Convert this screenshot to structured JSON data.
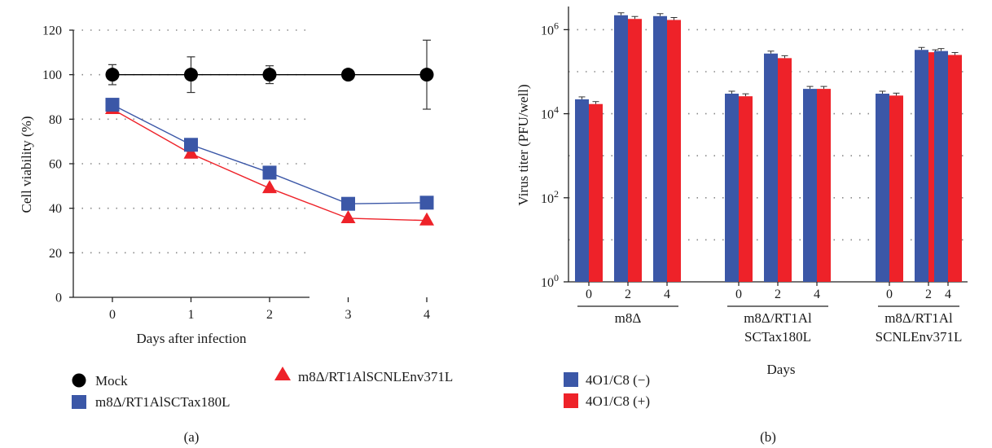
{
  "chart_data": [
    {
      "type": "line",
      "panel_label": "(a)",
      "xlabel": "Days after infection",
      "ylabel": "Cell viability (%)",
      "x": [
        0,
        1,
        2,
        3,
        4
      ],
      "x_tick_labels": [
        "0",
        "1",
        "2",
        "3",
        "4"
      ],
      "ylim": [
        0,
        120
      ],
      "y_ticks": [
        0,
        20,
        40,
        60,
        80,
        100,
        120
      ],
      "y_tick_labels": [
        "0",
        "20",
        "40",
        "60",
        "80",
        "100",
        "120"
      ],
      "grid": "horizontal dotted",
      "legend": [
        "Mock",
        "m8Δ/RT1AlSCTax180L",
        "m8Δ/RT1AlSCNLEnv371L"
      ],
      "series": [
        {
          "name": "Mock",
          "marker": "circle",
          "color": "#000000",
          "values": [
            100,
            100,
            100,
            100,
            100
          ],
          "errors": [
            4.5,
            8,
            4,
            0.8,
            15.5
          ]
        },
        {
          "name": "m8Δ/RT1AlSCTax180L",
          "marker": "square",
          "color": "#3b57a7",
          "values": [
            86.5,
            68.5,
            56,
            42,
            42.5
          ],
          "errors": [
            2,
            2.5,
            2.5,
            2.5,
            2.2
          ]
        },
        {
          "name": "m8Δ/RT1AlSCNLEnv371L",
          "marker": "triangle",
          "color": "#ee2229",
          "values": [
            84.5,
            64.5,
            49,
            35.5,
            34.5
          ],
          "errors": [
            1,
            1,
            1,
            1,
            1
          ]
        }
      ]
    },
    {
      "type": "bar",
      "panel_label": "(b)",
      "xlabel": "Days",
      "ylabel": "Virus titer (PFU/well)",
      "y_scale": "log",
      "ylim": [
        1,
        10000000
      ],
      "y_ticks": [
        1,
        100,
        10000,
        1000000
      ],
      "y_tick_labels": [
        [
          "10",
          "0"
        ],
        [
          "10",
          "2"
        ],
        [
          "10",
          "4"
        ],
        [
          "10",
          "6"
        ]
      ],
      "grid": "horizontal dotted",
      "groups": [
        {
          "label_lines": [
            "m8Δ"
          ],
          "days": [
            "0",
            "2",
            "4"
          ]
        },
        {
          "label_lines": [
            "m8Δ/RT1Al",
            "SCTax180L"
          ],
          "days": [
            "0",
            "2",
            "4"
          ]
        },
        {
          "label_lines": [
            "m8Δ/RT1Al",
            "SCNLEnv371L"
          ],
          "days": [
            "0",
            "2",
            "4"
          ]
        }
      ],
      "legend": [
        "4O1/C8 (−)",
        "4O1/C8 (+)"
      ],
      "series": [
        {
          "name": "4O1/C8 (−)",
          "color": "#3b57a7",
          "values": [
            22000,
            2200000,
            2100000,
            30000,
            270000,
            39000,
            30000,
            330000,
            310000
          ]
        },
        {
          "name": "4O1/C8 (+)",
          "color": "#ee2229",
          "values": [
            17000,
            1800000,
            1700000,
            26000,
            210000,
            39000,
            27000,
            290000,
            250000
          ]
        }
      ]
    }
  ]
}
